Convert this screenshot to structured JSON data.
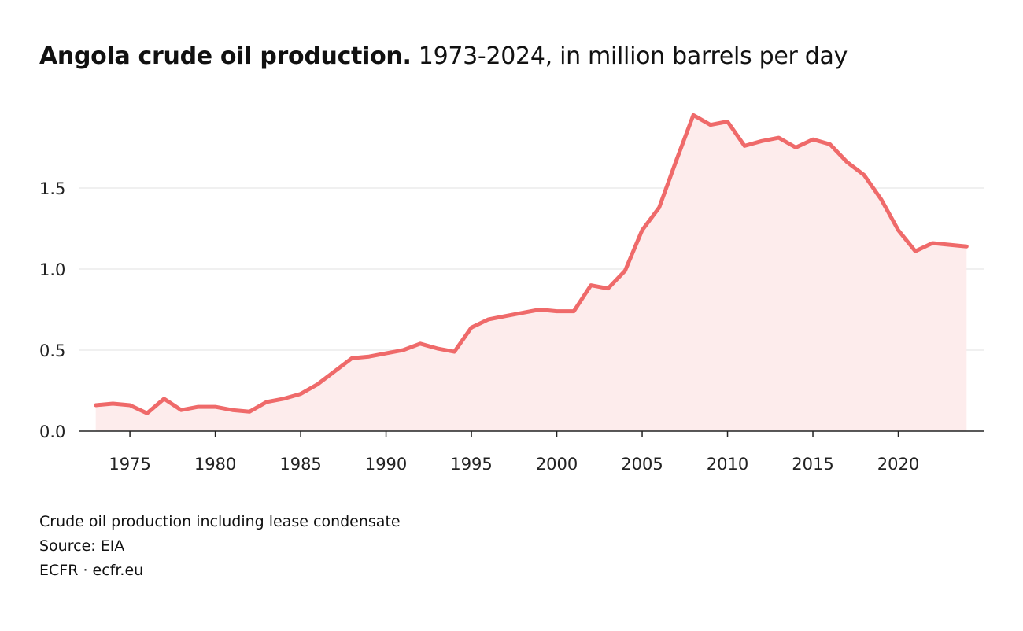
{
  "header": {
    "title_bold": "Angola crude oil production.",
    "title_rest": " 1973-2024, in million barrels per day"
  },
  "footer": {
    "note": "Crude oil production including lease condensate",
    "source": "Source: EIA",
    "credit": "ECFR · ecfr.eu"
  },
  "colors": {
    "line": "#ef6a6a",
    "area": "#fdecec",
    "grid": "#e6e6e6",
    "axis": "#222222"
  },
  "chart_data": {
    "type": "area",
    "title": "Angola crude oil production.",
    "subtitle": "1973-2024, in million barrels per day",
    "xlim": [
      1972,
      2025
    ],
    "ylim": [
      0,
      2.0
    ],
    "grid": "horizontal",
    "x_ticks": [
      1975,
      1980,
      1985,
      1990,
      1995,
      2000,
      2005,
      2010,
      2015,
      2020
    ],
    "x_tick_labels": [
      "1975",
      "1980",
      "1985",
      "1990",
      "1995",
      "2000",
      "2005",
      "2010",
      "2015",
      "2020"
    ],
    "y_ticks": [
      0,
      0.5,
      1.0,
      1.5
    ],
    "y_tick_labels": [
      "0.0",
      "0.5",
      "1.0",
      "1.5"
    ],
    "series": [
      {
        "x": [
          1973,
          1974,
          1975,
          1976,
          1977,
          1978,
          1979,
          1980,
          1981,
          1982,
          1983,
          1984,
          1985,
          1986,
          1987,
          1988,
          1989,
          1990,
          1991,
          1992,
          1993,
          1994,
          1995,
          1996,
          1997,
          1998,
          1999,
          2000,
          2001,
          2002,
          2003,
          2004,
          2005,
          2006,
          2007,
          2008,
          2009,
          2010,
          2011,
          2012,
          2013,
          2014,
          2015,
          2016,
          2017,
          2018,
          2019,
          2020,
          2021,
          2022,
          2023,
          2024
        ],
        "values": [
          0.16,
          0.17,
          0.16,
          0.11,
          0.2,
          0.13,
          0.15,
          0.15,
          0.13,
          0.12,
          0.18,
          0.2,
          0.23,
          0.29,
          0.37,
          0.45,
          0.46,
          0.48,
          0.5,
          0.54,
          0.51,
          0.49,
          0.64,
          0.69,
          0.71,
          0.73,
          0.75,
          0.74,
          0.74,
          0.9,
          0.88,
          0.99,
          1.24,
          1.38,
          1.67,
          1.95,
          1.89,
          1.91,
          1.76,
          1.79,
          1.81,
          1.75,
          1.8,
          1.77,
          1.66,
          1.58,
          1.43,
          1.24,
          1.11,
          1.16,
          1.15,
          1.14
        ]
      }
    ]
  }
}
